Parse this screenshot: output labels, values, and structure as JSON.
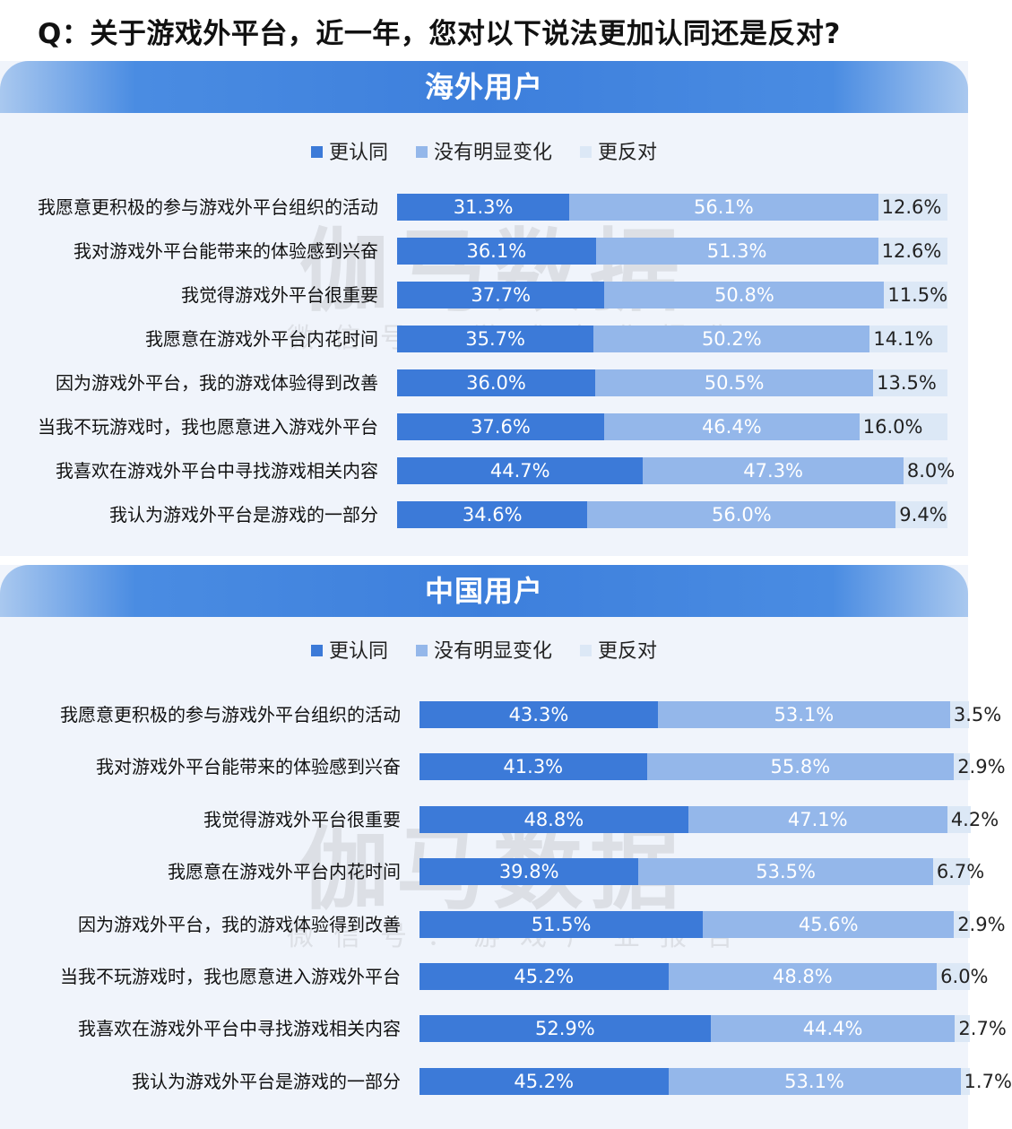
{
  "question": "Q：关于游戏外平台，近一年，您对以下说法更加认同还是反对?",
  "watermark": {
    "main": "伽马数据",
    "sub": "微信号：游戏产业报告"
  },
  "colors": {
    "agree": "#3c7ad8",
    "neutral": "#94b7ea",
    "oppose": "#dce8f6"
  },
  "chart_data": [
    {
      "type": "bar",
      "orientation": "horizontal",
      "stacked": true,
      "title": "海外用户",
      "legend_position": "top-center",
      "categories": [
        "我愿意更积极的参与游戏外平台组织的活动",
        "我对游戏外平台能带来的体验感到兴奋",
        "我觉得游戏外平台很重要",
        "我愿意在游戏外平台内花时间",
        "因为游戏外平台，我的游戏体验得到改善",
        "当我不玩游戏时，我也愿意进入游戏外平台",
        "我喜欢在游戏外平台中寻找游戏相关内容",
        "我认为游戏外平台是游戏的一部分"
      ],
      "series": [
        {
          "name": "更认同",
          "values": [
            31.3,
            36.1,
            37.7,
            35.7,
            36.0,
            37.6,
            44.7,
            34.6
          ],
          "labels": [
            "31.3%",
            "36.1%",
            "37.7%",
            "35.7%",
            "36.0%",
            "37.6%",
            "44.7%",
            "34.6%"
          ]
        },
        {
          "name": "没有明显变化",
          "values": [
            56.1,
            51.3,
            50.8,
            50.2,
            50.5,
            46.4,
            47.3,
            56.0
          ],
          "labels": [
            "56.1%",
            "51.3%",
            "50.8%",
            "50.2%",
            "50.5%",
            "46.4%",
            "47.3%",
            "56.0%"
          ]
        },
        {
          "name": "更反对",
          "values": [
            12.6,
            12.6,
            11.5,
            14.1,
            13.5,
            16.0,
            8.0,
            9.4
          ],
          "labels": [
            "12.6%",
            "12.6%",
            "11.5%",
            "14.1%",
            "13.5%",
            "16.0%",
            "8.0%",
            "9.4%"
          ]
        }
      ]
    },
    {
      "type": "bar",
      "orientation": "horizontal",
      "stacked": true,
      "title": "中国用户",
      "legend_position": "top-center",
      "categories": [
        "我愿意更积极的参与游戏外平台组织的活动",
        "我对游戏外平台能带来的体验感到兴奋",
        "我觉得游戏外平台很重要",
        "我愿意在游戏外平台内花时间",
        "因为游戏外平台，我的游戏体验得到改善",
        "当我不玩游戏时，我也愿意进入游戏外平台",
        "我喜欢在游戏外平台中寻找游戏相关内容",
        "我认为游戏外平台是游戏的一部分"
      ],
      "series": [
        {
          "name": "更认同",
          "values": [
            43.3,
            41.3,
            48.8,
            39.8,
            51.5,
            45.2,
            52.9,
            45.2
          ],
          "labels": [
            "43.3%",
            "41.3%",
            "48.8%",
            "39.8%",
            "51.5%",
            "45.2%",
            "52.9%",
            "45.2%"
          ]
        },
        {
          "name": "没有明显变化",
          "values": [
            53.1,
            55.8,
            47.1,
            53.5,
            45.6,
            48.8,
            44.4,
            53.1
          ],
          "labels": [
            "53.1%",
            "55.8%",
            "47.1%",
            "53.5%",
            "45.6%",
            "48.8%",
            "44.4%",
            "53.1%"
          ]
        },
        {
          "name": "更反对",
          "values": [
            3.5,
            2.9,
            4.2,
            6.7,
            2.9,
            6.0,
            2.7,
            1.7
          ],
          "labels": [
            "3.5%",
            "2.9%",
            "4.2%",
            "6.7%",
            "2.9%",
            "6.0%",
            "2.7%",
            "1.7%"
          ]
        }
      ]
    }
  ]
}
